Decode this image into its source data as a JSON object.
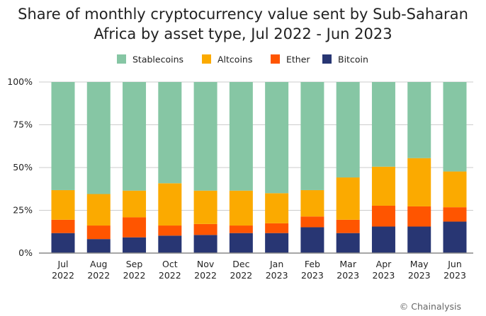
{
  "chart_data": {
    "type": "bar",
    "stacked": true,
    "title": "Share of monthly cryptocurrency value sent by Sub-Saharan Africa by asset type, Jul 2022 - Jun 2023",
    "categories": [
      "Jul 2022",
      "Aug 2022",
      "Sep 2022",
      "Oct 2022",
      "Nov 2022",
      "Dec 2022",
      "Jan 2023",
      "Feb 2023",
      "Mar 2023",
      "Apr 2023",
      "May 2023",
      "Jun 2023"
    ],
    "series": [
      {
        "name": "Bitcoin",
        "color": "#283673",
        "values": [
          11.7,
          8.2,
          9.2,
          10.2,
          10.6,
          11.7,
          11.7,
          15.1,
          11.7,
          15.5,
          15.5,
          18.4
        ]
      },
      {
        "name": "Ether",
        "color": "#ff5500",
        "values": [
          7.8,
          7.9,
          11.7,
          5.9,
          6.4,
          4.4,
          5.7,
          6.3,
          7.8,
          12.2,
          11.8,
          8.4
        ]
      },
      {
        "name": "Altcoins",
        "color": "#fbaa00",
        "values": [
          17.3,
          18.4,
          15.6,
          24.7,
          19.5,
          20.4,
          17.6,
          15.4,
          24.7,
          22.8,
          28.2,
          20.9
        ]
      },
      {
        "name": "Stablecoins",
        "color": "#86c6a4",
        "values": [
          63.2,
          65.5,
          63.5,
          59.2,
          63.5,
          63.5,
          65.0,
          63.2,
          55.8,
          49.5,
          44.5,
          52.3
        ]
      }
    ],
    "legend_order": [
      "Stablecoins",
      "Altcoins",
      "Ether",
      "Bitcoin"
    ],
    "legend_placement": "top",
    "yticks": [
      "0%",
      "25%",
      "50%",
      "75%",
      "100%"
    ],
    "ylim": [
      0,
      100
    ],
    "grid": true,
    "source": "© Chainalysis"
  }
}
